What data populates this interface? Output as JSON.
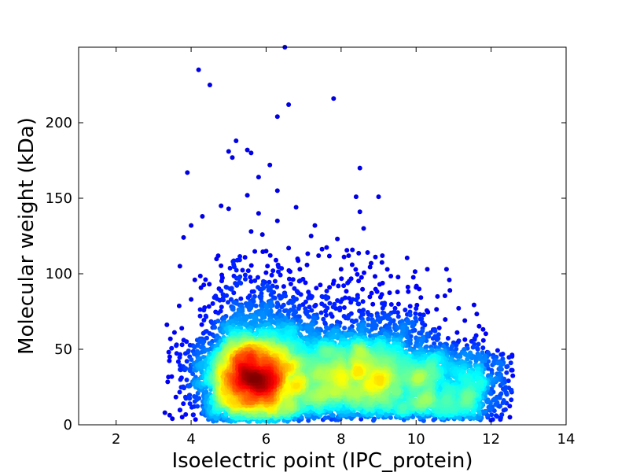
{
  "chart_data": {
    "type": "scatter",
    "title": "",
    "xlabel": "Isoelectric point (IPC_protein)",
    "ylabel": "Molecular weight (kDa)",
    "xlim": [
      1,
      14
    ],
    "ylim": [
      0,
      250
    ],
    "x_ticks": [
      2,
      4,
      6,
      8,
      10,
      12,
      14
    ],
    "y_ticks": [
      0,
      50,
      100,
      150,
      200
    ],
    "x_tick_labels": [
      "2",
      "4",
      "6",
      "8",
      "10",
      "12",
      "14"
    ],
    "y_tick_labels": [
      "0",
      "50",
      "100",
      "150",
      "200"
    ],
    "grid": false,
    "legend": "none",
    "color_scale": "density (jet: blue low, red high)",
    "density_peaks": [
      {
        "x": 5.7,
        "y": 30
      },
      {
        "x": 8.6,
        "y": 33
      }
    ],
    "outliers": [
      {
        "x": 4.2,
        "y": 235
      },
      {
        "x": 4.5,
        "y": 225
      },
      {
        "x": 6.5,
        "y": 250
      },
      {
        "x": 7.8,
        "y": 216
      },
      {
        "x": 6.6,
        "y": 212
      },
      {
        "x": 6.3,
        "y": 204
      },
      {
        "x": 5.2,
        "y": 188
      },
      {
        "x": 5.0,
        "y": 181
      },
      {
        "x": 5.5,
        "y": 182
      },
      {
        "x": 5.1,
        "y": 177
      },
      {
        "x": 5.6,
        "y": 180
      },
      {
        "x": 6.1,
        "y": 172
      },
      {
        "x": 8.5,
        "y": 170
      },
      {
        "x": 3.9,
        "y": 167
      },
      {
        "x": 5.8,
        "y": 164
      },
      {
        "x": 6.3,
        "y": 155
      },
      {
        "x": 5.5,
        "y": 152
      },
      {
        "x": 8.4,
        "y": 151
      },
      {
        "x": 9.0,
        "y": 151
      },
      {
        "x": 4.8,
        "y": 145
      },
      {
        "x": 6.8,
        "y": 144
      },
      {
        "x": 5.0,
        "y": 143
      },
      {
        "x": 8.5,
        "y": 141
      },
      {
        "x": 5.8,
        "y": 140
      },
      {
        "x": 4.3,
        "y": 138
      },
      {
        "x": 6.3,
        "y": 135
      },
      {
        "x": 4.0,
        "y": 132
      },
      {
        "x": 7.3,
        "y": 132
      },
      {
        "x": 8.6,
        "y": 130
      },
      {
        "x": 5.6,
        "y": 128
      },
      {
        "x": 5.9,
        "y": 126
      },
      {
        "x": 3.8,
        "y": 124
      },
      {
        "x": 7.2,
        "y": 125
      },
      {
        "x": 7.9,
        "y": 123
      },
      {
        "x": 6.0,
        "y": 115
      },
      {
        "x": 6.6,
        "y": 117
      },
      {
        "x": 8.2,
        "y": 112
      },
      {
        "x": 9.1,
        "y": 112
      },
      {
        "x": 3.7,
        "y": 105
      },
      {
        "x": 7.4,
        "y": 112
      },
      {
        "x": 6.9,
        "y": 103
      },
      {
        "x": 8.0,
        "y": 103
      },
      {
        "x": 10.3,
        "y": 103
      },
      {
        "x": 4.1,
        "y": 96
      },
      {
        "x": 8.8,
        "y": 107
      },
      {
        "x": 10.0,
        "y": 91
      },
      {
        "x": 10.9,
        "y": 89
      },
      {
        "x": 4.0,
        "y": 83
      },
      {
        "x": 11.3,
        "y": 69
      },
      {
        "x": 11.9,
        "y": 48
      },
      {
        "x": 12.3,
        "y": 30
      },
      {
        "x": 12.5,
        "y": 5
      },
      {
        "x": 3.3,
        "y": 8
      },
      {
        "x": 3.5,
        "y": 4
      }
    ]
  }
}
